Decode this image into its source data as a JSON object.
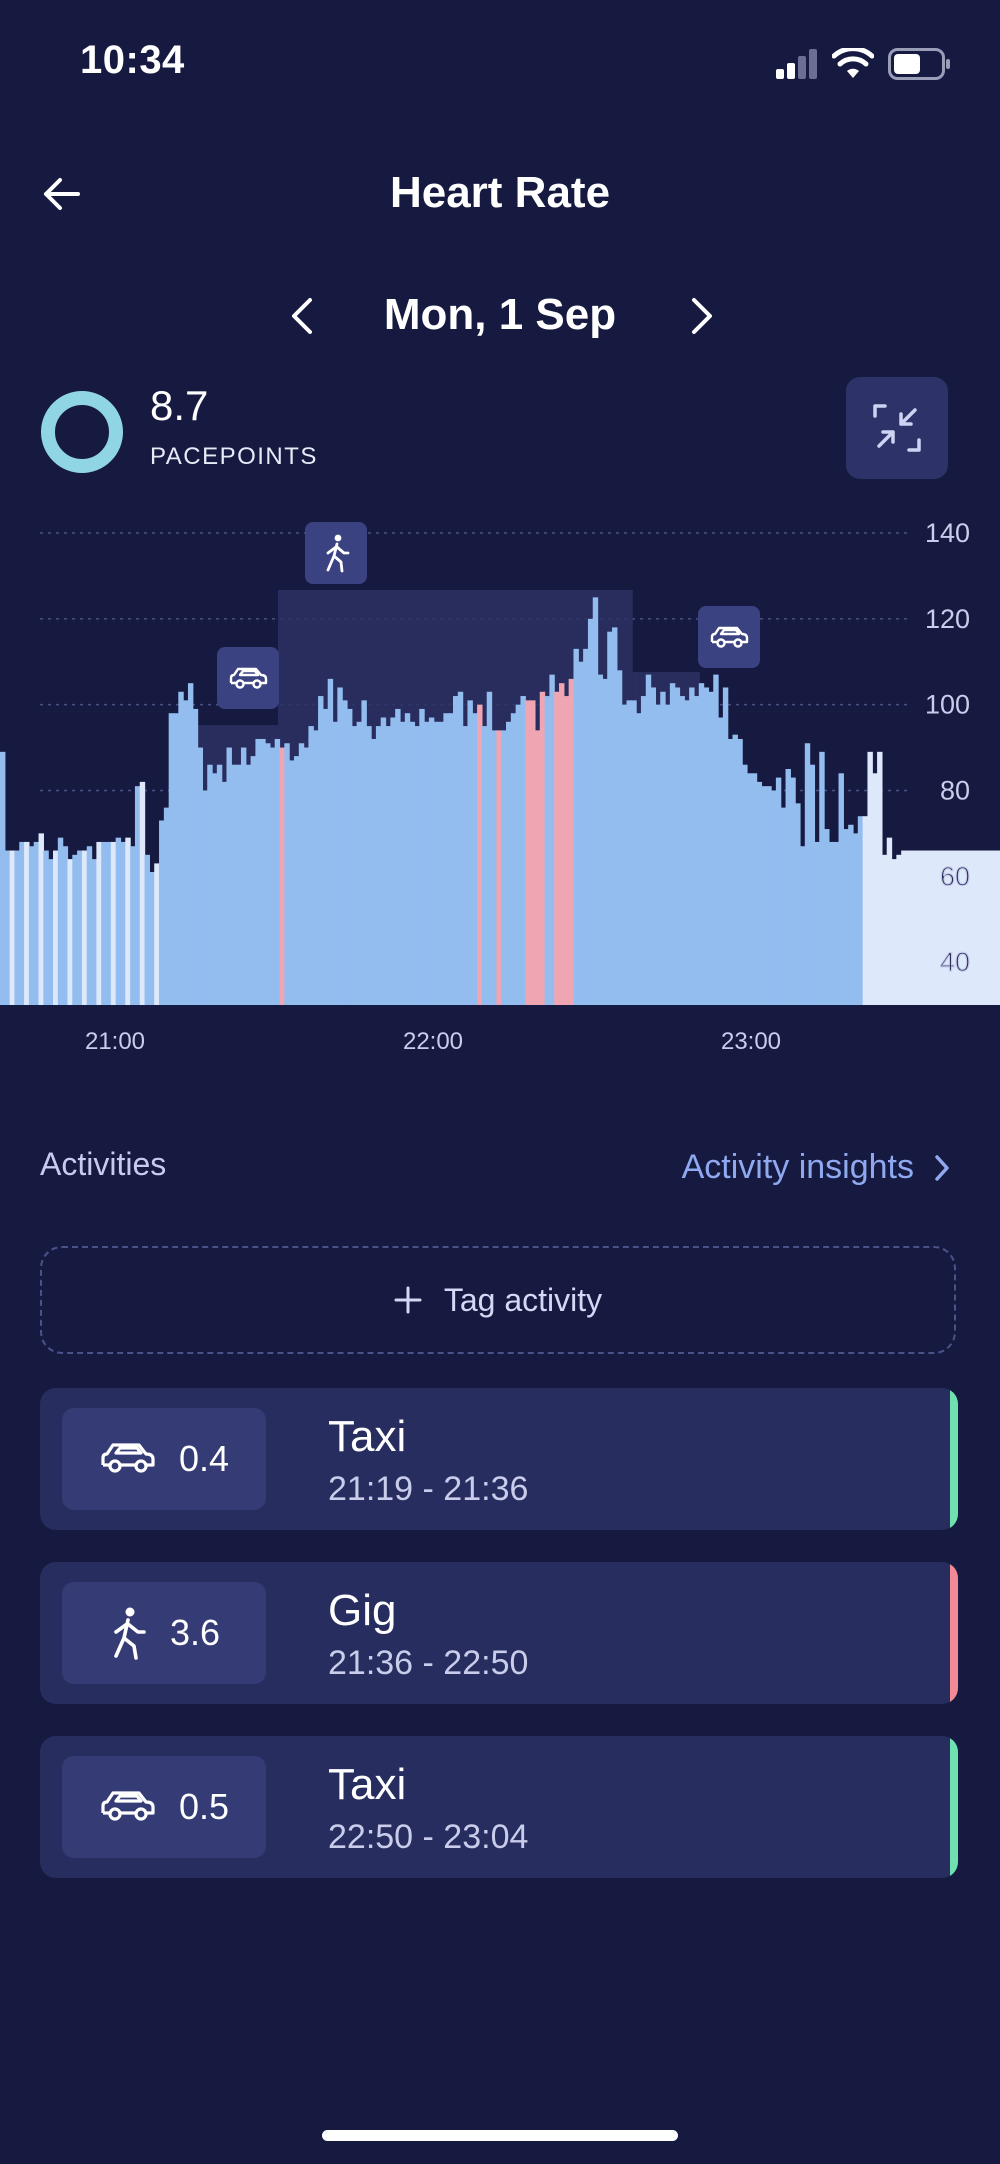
{
  "status_bar": {
    "time": "10:34"
  },
  "header": {
    "title": "Heart Rate",
    "date": "Mon, 1 Sep"
  },
  "pacepoints": {
    "value": "8.7",
    "label": "PACEPOINTS"
  },
  "chart_data": {
    "type": "bar",
    "ylabel": "",
    "xlabel": "",
    "y_ticks": [
      140,
      120,
      100,
      80,
      60,
      40
    ],
    "x_tick_labels": [
      "21:00",
      "22:00",
      "23:00"
    ],
    "ylim": [
      30,
      140
    ],
    "x_start_time": "20:38",
    "x_end_time": "23:47",
    "gridlines": true,
    "series": [
      {
        "color": "#93bdef",
        "values": [
          89,
          66,
          66,
          66,
          68,
          68,
          67,
          68,
          70,
          66,
          64,
          66,
          69,
          67,
          64,
          65,
          66,
          66,
          67,
          64,
          68,
          68,
          68,
          68,
          69,
          68,
          69,
          67,
          81,
          82,
          65,
          61,
          63,
          73,
          76,
          98,
          98,
          103,
          101,
          105,
          99,
          90,
          80,
          86,
          84,
          86,
          82,
          90,
          86,
          86,
          90,
          86,
          88,
          92,
          92,
          91,
          90,
          92,
          90,
          91,
          87,
          88,
          91,
          90,
          95,
          94,
          102,
          99,
          106,
          96,
          104,
          101,
          99,
          95,
          96,
          101,
          95,
          92,
          95,
          97,
          95,
          97,
          99,
          96,
          98,
          96,
          95,
          99,
          96,
          97,
          96,
          96,
          98,
          98,
          102,
          103,
          95,
          101,
          98,
          100,
          95,
          103,
          94,
          94,
          94,
          96,
          98,
          100,
          102,
          101,
          101,
          94,
          103,
          102,
          107,
          103,
          105,
          102,
          106,
          113,
          110,
          113,
          120,
          125,
          107,
          106,
          117,
          118,
          108,
          100,
          101,
          101,
          98,
          102,
          107,
          104,
          100,
          103,
          100,
          105,
          104,
          102,
          101,
          104,
          102,
          105,
          104,
          103,
          107,
          97,
          104,
          92,
          93,
          92,
          86,
          84,
          84,
          82,
          81,
          81,
          80,
          83,
          76,
          85,
          83,
          77,
          67,
          91,
          86,
          68,
          89,
          71,
          68,
          68,
          84,
          71,
          72,
          70,
          74,
          74,
          89,
          84,
          89,
          65,
          69,
          64,
          65,
          66
        ]
      }
    ],
    "elevated_segments": [
      {
        "from": "21:36",
        "to": "21:37"
      },
      {
        "from": "22:17",
        "to": "22:18"
      },
      {
        "from": "22:21",
        "to": "22:22"
      },
      {
        "from": "22:27",
        "to": "22:31"
      },
      {
        "from": "22:33",
        "to": "22:37"
      }
    ],
    "activity_bands": [
      {
        "from": "21:19",
        "to": "21:36",
        "icon": "car-icon"
      },
      {
        "from": "21:36",
        "to": "22:50",
        "icon": "walking-icon"
      },
      {
        "from": "22:50",
        "to": "23:04",
        "icon": "car-icon"
      }
    ],
    "highlight_color": "#f0a5b2"
  },
  "activities": {
    "title": "Activities",
    "insights_label": "Activity insights",
    "tag_label": "Tag activity",
    "items": [
      {
        "icon": "car-icon",
        "score": "0.4",
        "name": "Taxi",
        "range": "21:19 - 21:36",
        "accent": "#6fe0b0"
      },
      {
        "icon": "walking-icon",
        "score": "3.6",
        "name": "Gig",
        "range": "21:36 - 22:50",
        "accent": "#f28a96"
      },
      {
        "icon": "car-icon",
        "score": "0.5",
        "name": "Taxi",
        "range": "22:50 - 23:04",
        "accent": "#6fe0b0"
      }
    ]
  },
  "colors": {
    "background": "#171a40",
    "bar": "#93bdef",
    "bar_light": "#dde9fb",
    "elevated": "#f0a5b2",
    "card": "#272d5e"
  }
}
